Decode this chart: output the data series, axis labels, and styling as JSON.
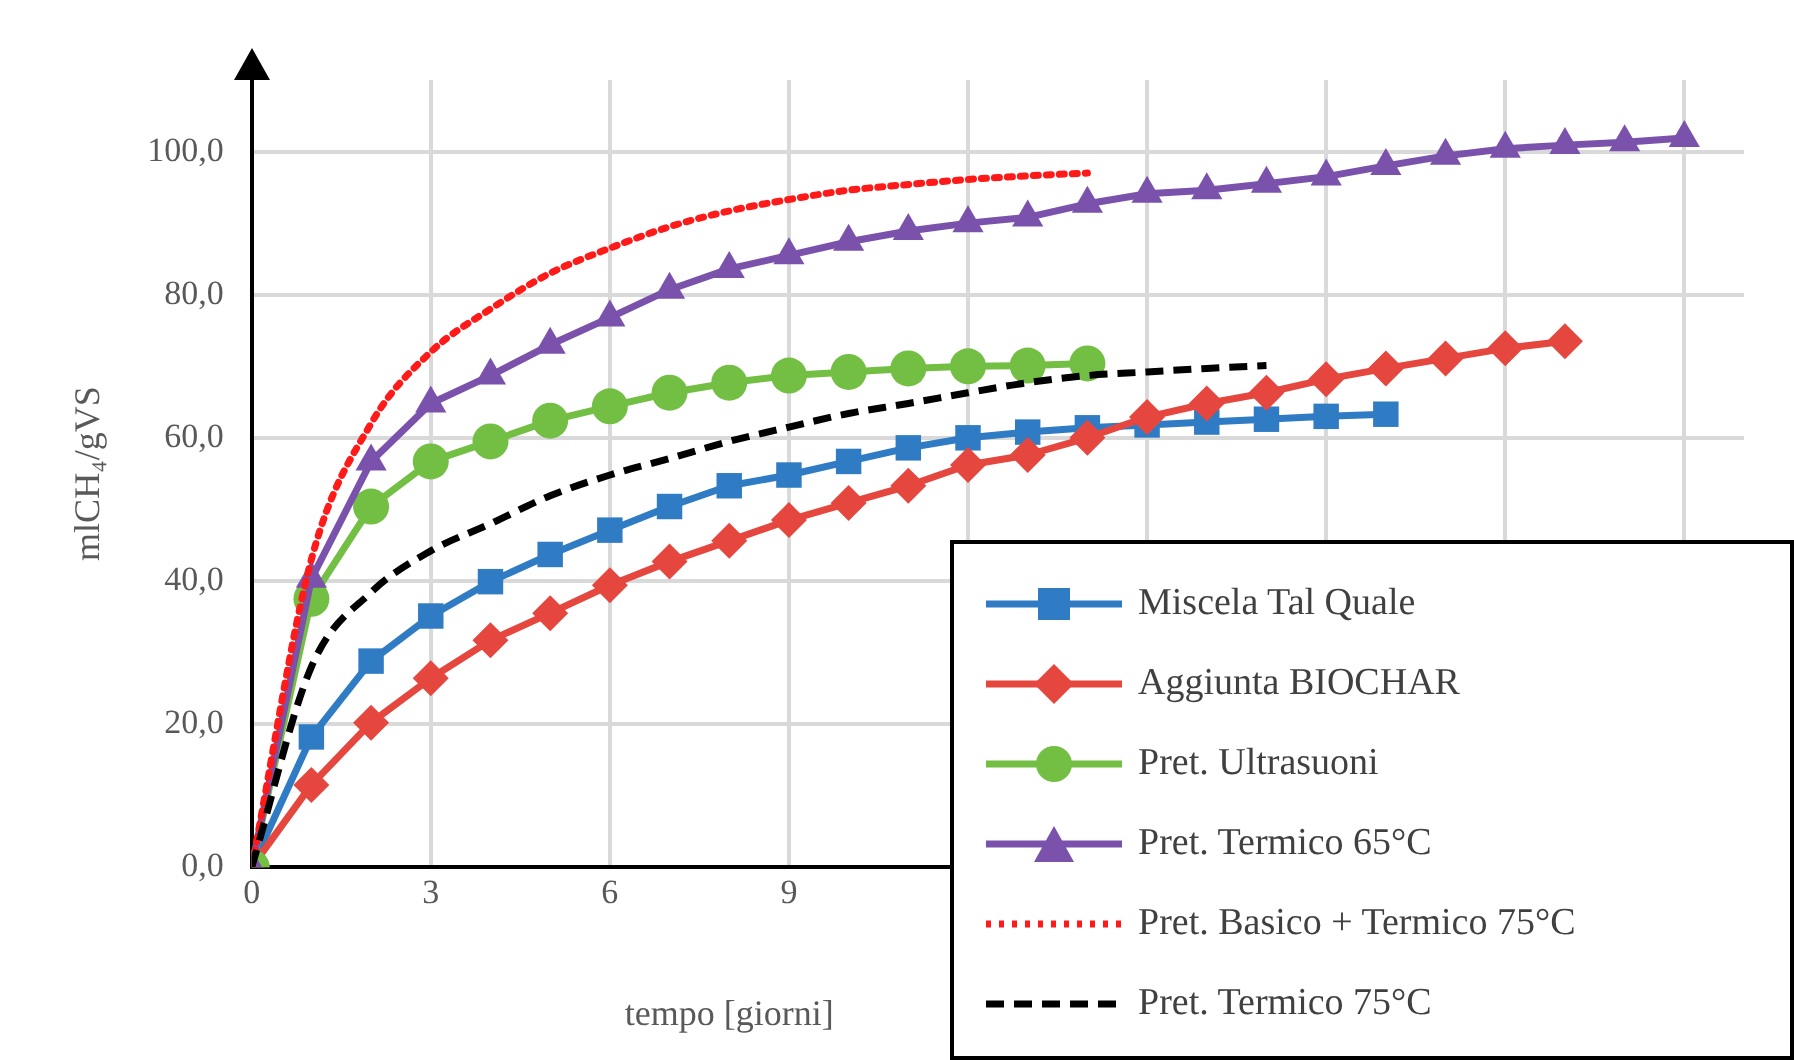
{
  "chart_data": {
    "type": "line",
    "xlabel": "tempo [giorni]",
    "ylabel": "mlCH₄/gVS",
    "x": [
      0,
      1,
      2,
      3,
      4,
      5,
      6,
      7,
      8,
      9,
      10,
      11,
      12,
      13,
      14,
      15,
      16,
      17,
      18,
      19,
      20,
      21,
      22,
      23,
      24
    ],
    "xlim": [
      0,
      25
    ],
    "xticks": [
      0,
      3,
      6,
      9,
      {
        "value": 12,
        "label": null
      },
      {
        "value": 15,
        "label": null
      },
      {
        "value": 18,
        "label": null
      },
      {
        "value": 21,
        "label": null
      },
      {
        "value": 24,
        "label": null
      }
    ],
    "ylim": [
      0,
      110
    ],
    "yticks": [
      {
        "value": 0,
        "label": "0,0"
      },
      {
        "value": 20,
        "label": "20,0"
      },
      {
        "value": 40,
        "label": "40,0"
      },
      {
        "value": 60,
        "label": "60,0"
      },
      {
        "value": 80,
        "label": "80,0"
      },
      {
        "value": 100,
        "label": "100,0"
      }
    ],
    "grid": true,
    "legend": "bottom right",
    "series": [
      {
        "name": "Miscela Tal Quale",
        "color": "#2f7cc4",
        "marker": "square",
        "line_style": "solid",
        "values": [
          0,
          18.2,
          28.8,
          35.1,
          39.9,
          43.7,
          47.1,
          50.4,
          53.3,
          54.8,
          56.7,
          58.6,
          60,
          60.8,
          61.4,
          61.8,
          62.2,
          62.6,
          63,
          63.3,
          null,
          null,
          null,
          null,
          null
        ]
      },
      {
        "name": "Aggiunta BIOCHAR",
        "color": "#e5473f",
        "marker": "diamond",
        "line_style": "solid",
        "values": [
          0,
          11.5,
          20.2,
          26.4,
          31.7,
          35.5,
          39.4,
          42.7,
          45.6,
          48.5,
          50.9,
          53.3,
          56.2,
          57.6,
          60,
          62.9,
          64.8,
          66.3,
          68.2,
          69.7,
          71.1,
          72.5,
          73.5,
          null,
          null
        ]
      },
      {
        "name": "Pret. Ultrasuoni",
        "color": "#72bf44",
        "marker": "circle",
        "line_style": "solid",
        "values": [
          0,
          37.5,
          50.4,
          56.7,
          59.5,
          62.4,
          64.4,
          66.3,
          67.7,
          68.7,
          69.2,
          69.7,
          70,
          70.1,
          70.4,
          null,
          null,
          null,
          null,
          null,
          null,
          null,
          null,
          null,
          null
        ]
      },
      {
        "name": "Pret. Termico 65°C",
        "color": "#7b52ab",
        "marker": "triangle",
        "line_style": "solid",
        "values": [
          0,
          40.3,
          56.7,
          64.8,
          68.7,
          73,
          76.8,
          80.7,
          83.6,
          85.5,
          87.4,
          88.9,
          90,
          90.8,
          92.7,
          94.1,
          94.6,
          95.5,
          96.5,
          98,
          99.4,
          100.4,
          100.9,
          101.3,
          101.9
        ]
      },
      {
        "name": "Pret. Basico + Termico 75°C",
        "color": "#ff1a1a",
        "marker": "none",
        "line_style": "dotted",
        "values": [
          0,
          43,
          62,
          72,
          78,
          83,
          86.5,
          89.5,
          91.7,
          93.3,
          94.6,
          95.4,
          96.1,
          96.6,
          97,
          null,
          null,
          null,
          null,
          null,
          null,
          null,
          null,
          null,
          null
        ]
      },
      {
        "name": "Pret. Termico 75°C",
        "color": "#000000",
        "marker": "none",
        "line_style": "dashed",
        "values": [
          0,
          28,
          38.4,
          44.2,
          48,
          51.9,
          54.8,
          57.1,
          59.5,
          61.5,
          63.4,
          64.8,
          66.3,
          67.7,
          68.7,
          69.2,
          69.7,
          70.1,
          null,
          null,
          null,
          null,
          null,
          null,
          null
        ]
      }
    ]
  }
}
